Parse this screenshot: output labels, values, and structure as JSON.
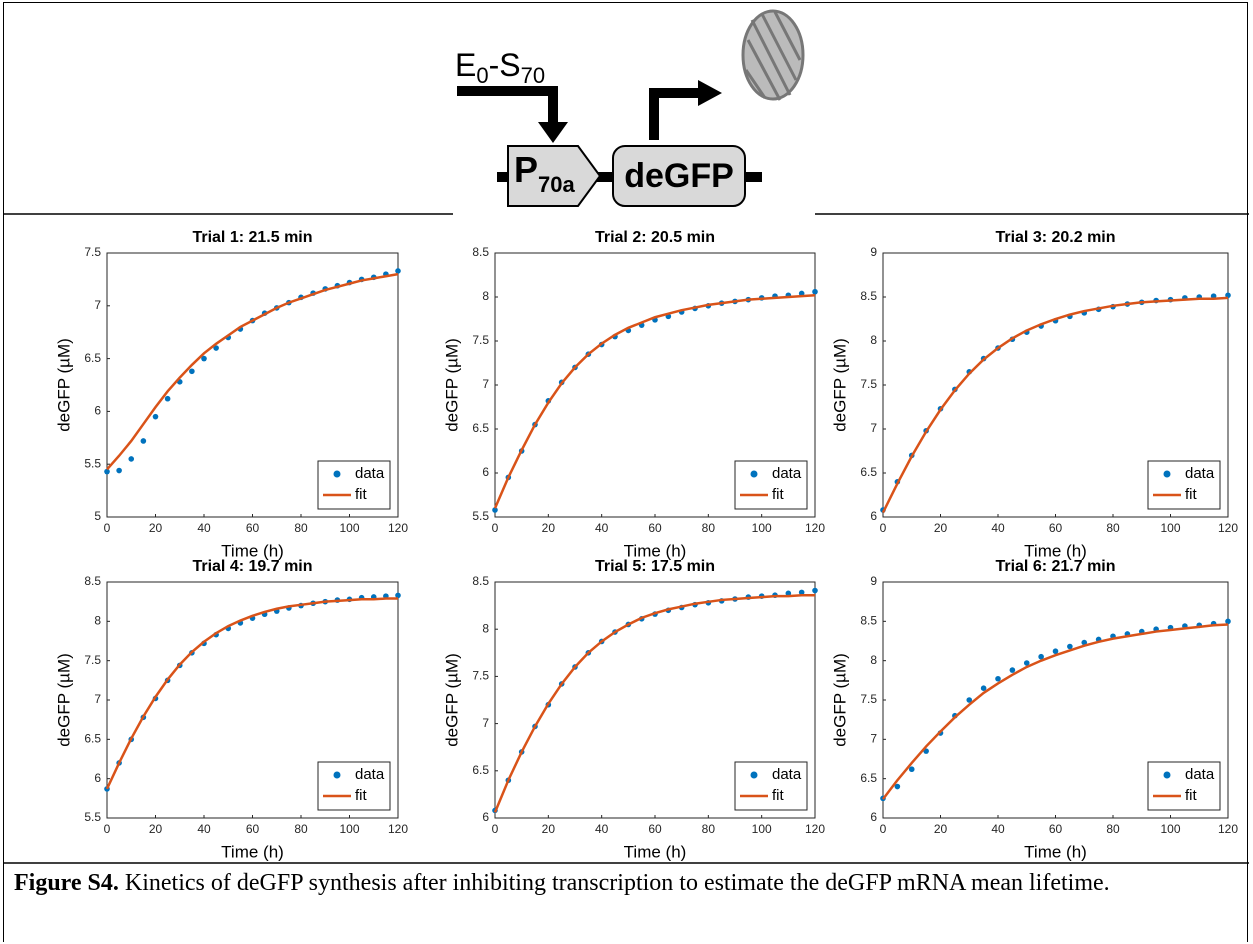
{
  "diagram": {
    "inducer": [
      "E",
      "0",
      "-S",
      "70"
    ],
    "promoter": [
      "P",
      "70a"
    ],
    "gene": "deGFP"
  },
  "chart_data": [
    {
      "type": "scatter",
      "title": "Trial 1: 21.5 min",
      "xlabel": "Time (h)",
      "ylabel": "deGFP (µM)",
      "x": [
        0,
        5,
        10,
        15,
        20,
        25,
        30,
        35,
        40,
        45,
        50,
        55,
        60,
        65,
        70,
        75,
        80,
        85,
        90,
        95,
        100,
        105,
        110,
        115,
        120
      ],
      "series": [
        {
          "name": "data",
          "color": "#0072bd",
          "mode": "markers",
          "values": [
            5.43,
            5.44,
            5.55,
            5.72,
            5.95,
            6.12,
            6.28,
            6.38,
            6.5,
            6.6,
            6.7,
            6.78,
            6.86,
            6.93,
            6.98,
            7.03,
            7.08,
            7.12,
            7.16,
            7.19,
            7.22,
            7.25,
            7.27,
            7.3,
            7.33
          ]
        },
        {
          "name": "fit",
          "color": "#d95319",
          "mode": "lines",
          "values": [
            5.45,
            5.58,
            5.72,
            5.88,
            6.04,
            6.19,
            6.32,
            6.44,
            6.55,
            6.64,
            6.72,
            6.8,
            6.86,
            6.92,
            6.98,
            7.03,
            7.07,
            7.11,
            7.15,
            7.18,
            7.21,
            7.24,
            7.26,
            7.28,
            7.3
          ]
        }
      ],
      "xlim": [
        0,
        120
      ],
      "xticks": [
        0,
        20,
        40,
        60,
        80,
        100,
        120
      ],
      "ylim": [
        5,
        7.5
      ],
      "yticks": [
        5,
        5.5,
        6,
        6.5,
        7,
        7.5
      ],
      "grid": false,
      "legend": "lower right"
    },
    {
      "type": "scatter",
      "title": "Trial 2: 20.5 min",
      "xlabel": "Time (h)",
      "ylabel": "deGFP (µM)",
      "x": [
        0,
        5,
        10,
        15,
        20,
        25,
        30,
        35,
        40,
        45,
        50,
        55,
        60,
        65,
        70,
        75,
        80,
        85,
        90,
        95,
        100,
        105,
        110,
        115,
        120
      ],
      "series": [
        {
          "name": "data",
          "color": "#0072bd",
          "mode": "markers",
          "values": [
            5.58,
            5.95,
            6.25,
            6.55,
            6.82,
            7.03,
            7.2,
            7.35,
            7.46,
            7.55,
            7.62,
            7.68,
            7.74,
            7.78,
            7.83,
            7.87,
            7.9,
            7.93,
            7.95,
            7.97,
            7.99,
            8.01,
            8.02,
            8.04,
            8.06
          ]
        },
        {
          "name": "fit",
          "color": "#d95319",
          "mode": "lines",
          "values": [
            5.6,
            5.95,
            6.26,
            6.55,
            6.8,
            7.02,
            7.2,
            7.35,
            7.47,
            7.57,
            7.65,
            7.71,
            7.77,
            7.81,
            7.85,
            7.88,
            7.91,
            7.93,
            7.95,
            7.97,
            7.98,
            7.99,
            8.0,
            8.01,
            8.02
          ]
        }
      ],
      "xlim": [
        0,
        120
      ],
      "xticks": [
        0,
        20,
        40,
        60,
        80,
        100,
        120
      ],
      "ylim": [
        5.5,
        8.5
      ],
      "yticks": [
        5.5,
        6,
        6.5,
        7,
        7.5,
        8,
        8.5
      ],
      "grid": false,
      "legend": "lower right"
    },
    {
      "type": "scatter",
      "title": "Trial 3: 20.2 min",
      "xlabel": "Time (h)",
      "ylabel": "deGFP (µM)",
      "x": [
        0,
        5,
        10,
        15,
        20,
        25,
        30,
        35,
        40,
        45,
        50,
        55,
        60,
        65,
        70,
        75,
        80,
        85,
        90,
        95,
        100,
        105,
        110,
        115,
        120
      ],
      "series": [
        {
          "name": "data",
          "color": "#0072bd",
          "mode": "markers",
          "values": [
            6.08,
            6.4,
            6.7,
            6.98,
            7.23,
            7.45,
            7.65,
            7.8,
            7.92,
            8.02,
            8.1,
            8.17,
            8.23,
            8.28,
            8.32,
            8.36,
            8.39,
            8.42,
            8.44,
            8.46,
            8.47,
            8.49,
            8.5,
            8.51,
            8.52
          ]
        },
        {
          "name": "fit",
          "color": "#d95319",
          "mode": "lines",
          "values": [
            6.05,
            6.38,
            6.69,
            6.97,
            7.22,
            7.44,
            7.63,
            7.79,
            7.92,
            8.03,
            8.12,
            8.19,
            8.25,
            8.3,
            8.34,
            8.37,
            8.4,
            8.42,
            8.44,
            8.45,
            8.46,
            8.47,
            8.48,
            8.48,
            8.49
          ]
        }
      ],
      "xlim": [
        0,
        120
      ],
      "xticks": [
        0,
        20,
        40,
        60,
        80,
        100,
        120
      ],
      "ylim": [
        6,
        9
      ],
      "yticks": [
        6,
        6.5,
        7,
        7.5,
        8,
        8.5,
        9
      ],
      "grid": false,
      "legend": "lower right"
    },
    {
      "type": "scatter",
      "title": "Trial 4: 19.7 min",
      "xlabel": "Time (h)",
      "ylabel": "deGFP (µM)",
      "x": [
        0,
        5,
        10,
        15,
        20,
        25,
        30,
        35,
        40,
        45,
        50,
        55,
        60,
        65,
        70,
        75,
        80,
        85,
        90,
        95,
        100,
        105,
        110,
        115,
        120
      ],
      "series": [
        {
          "name": "data",
          "color": "#0072bd",
          "mode": "markers",
          "values": [
            5.87,
            6.2,
            6.5,
            6.78,
            7.02,
            7.25,
            7.44,
            7.6,
            7.72,
            7.83,
            7.91,
            7.98,
            8.04,
            8.09,
            8.13,
            8.17,
            8.2,
            8.23,
            8.25,
            8.27,
            8.28,
            8.3,
            8.31,
            8.32,
            8.33
          ]
        },
        {
          "name": "fit",
          "color": "#d95319",
          "mode": "lines",
          "values": [
            5.87,
            6.2,
            6.51,
            6.79,
            7.04,
            7.26,
            7.45,
            7.61,
            7.74,
            7.85,
            7.94,
            8.01,
            8.07,
            8.12,
            8.16,
            8.19,
            8.21,
            8.23,
            8.25,
            8.26,
            8.27,
            8.28,
            8.28,
            8.29,
            8.29
          ]
        }
      ],
      "xlim": [
        0,
        120
      ],
      "xticks": [
        0,
        20,
        40,
        60,
        80,
        100,
        120
      ],
      "ylim": [
        5.5,
        8.5
      ],
      "yticks": [
        5.5,
        6,
        6.5,
        7,
        7.5,
        8,
        8.5
      ],
      "grid": false,
      "legend": "lower right"
    },
    {
      "type": "scatter",
      "title": "Trial 5: 17.5 min",
      "xlabel": "Time (h)",
      "ylabel": "deGFP (µM)",
      "x": [
        0,
        5,
        10,
        15,
        20,
        25,
        30,
        35,
        40,
        45,
        50,
        55,
        60,
        65,
        70,
        75,
        80,
        85,
        90,
        95,
        100,
        105,
        110,
        115,
        120
      ],
      "series": [
        {
          "name": "data",
          "color": "#0072bd",
          "mode": "markers",
          "values": [
            6.08,
            6.4,
            6.7,
            6.97,
            7.2,
            7.42,
            7.6,
            7.75,
            7.87,
            7.97,
            8.05,
            8.11,
            8.16,
            8.2,
            8.23,
            8.26,
            8.28,
            8.3,
            8.32,
            8.34,
            8.35,
            8.36,
            8.38,
            8.39,
            8.41
          ]
        },
        {
          "name": "fit",
          "color": "#d95319",
          "mode": "lines",
          "values": [
            6.06,
            6.4,
            6.7,
            6.97,
            7.21,
            7.42,
            7.6,
            7.75,
            7.87,
            7.97,
            8.05,
            8.12,
            8.17,
            8.21,
            8.24,
            8.27,
            8.29,
            8.31,
            8.32,
            8.33,
            8.34,
            8.35,
            8.35,
            8.36,
            8.36
          ]
        }
      ],
      "xlim": [
        0,
        120
      ],
      "xticks": [
        0,
        20,
        40,
        60,
        80,
        100,
        120
      ],
      "ylim": [
        6,
        8.5
      ],
      "yticks": [
        6,
        6.5,
        7,
        7.5,
        8,
        8.5
      ],
      "grid": false,
      "legend": "lower right"
    },
    {
      "type": "scatter",
      "title": "Trial 6: 21.7 min",
      "xlabel": "Time (h)",
      "ylabel": "deGFP (µM)",
      "x": [
        0,
        5,
        10,
        15,
        20,
        25,
        30,
        35,
        40,
        45,
        50,
        55,
        60,
        65,
        70,
        75,
        80,
        85,
        90,
        95,
        100,
        105,
        110,
        115,
        120
      ],
      "series": [
        {
          "name": "data",
          "color": "#0072bd",
          "mode": "markers",
          "values": [
            6.25,
            6.4,
            6.62,
            6.85,
            7.08,
            7.3,
            7.5,
            7.65,
            7.77,
            7.88,
            7.97,
            8.05,
            8.12,
            8.18,
            8.23,
            8.27,
            8.31,
            8.34,
            8.37,
            8.4,
            8.42,
            8.44,
            8.45,
            8.47,
            8.5
          ]
        },
        {
          "name": "fit",
          "color": "#d95319",
          "mode": "lines",
          "values": [
            6.24,
            6.48,
            6.7,
            6.91,
            7.1,
            7.28,
            7.44,
            7.59,
            7.71,
            7.82,
            7.92,
            8.0,
            8.07,
            8.13,
            8.19,
            8.24,
            8.28,
            8.31,
            8.34,
            8.37,
            8.39,
            8.41,
            8.43,
            8.45,
            8.46
          ]
        }
      ],
      "xlim": [
        0,
        120
      ],
      "xticks": [
        0,
        20,
        40,
        60,
        80,
        100,
        120
      ],
      "ylim": [
        6,
        9
      ],
      "yticks": [
        6,
        6.5,
        7,
        7.5,
        8,
        8.5,
        9
      ],
      "grid": false,
      "legend": "lower right"
    }
  ],
  "caption": {
    "label": "Figure S4.",
    "text": "Kinetics of deGFP synthesis after inhibiting transcription to estimate the deGFP mRNA mean lifetime."
  }
}
